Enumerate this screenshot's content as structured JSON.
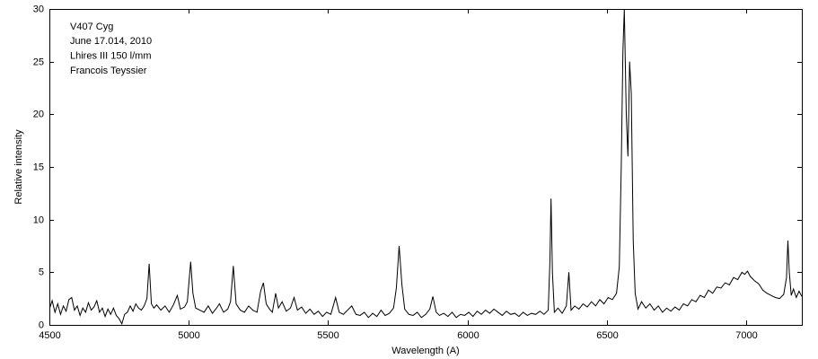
{
  "chart_data": {
    "type": "line",
    "annotations": [
      "V407 Cyg",
      "June 17.014, 2010",
      "Lhires III 150 l/mm",
      "Francois Teyssier"
    ],
    "xlabel": "Wavelength (A)",
    "ylabel": "Relative intensity",
    "xlim": [
      4500,
      7200
    ],
    "ylim": [
      0,
      30
    ],
    "xticks": [
      4500,
      5000,
      5500,
      6000,
      6500,
      7000
    ],
    "yticks": [
      0,
      5,
      10,
      15,
      20,
      25,
      30
    ],
    "grid": false,
    "color": "#000000",
    "x": [
      4500,
      4510,
      4520,
      4530,
      4540,
      4550,
      4560,
      4570,
      4580,
      4590,
      4600,
      4610,
      4620,
      4630,
      4640,
      4650,
      4660,
      4670,
      4680,
      4690,
      4700,
      4710,
      4720,
      4730,
      4740,
      4750,
      4760,
      4770,
      4780,
      4790,
      4800,
      4810,
      4820,
      4830,
      4840,
      4850,
      4858,
      4866,
      4875,
      4885,
      4900,
      4915,
      4930,
      4945,
      4959,
      4970,
      4985,
      4995,
      5007,
      5015,
      5025,
      5040,
      5055,
      5070,
      5085,
      5100,
      5110,
      5125,
      5140,
      5150,
      5160,
      5170,
      5185,
      5200,
      5215,
      5230,
      5245,
      5258,
      5268,
      5278,
      5290,
      5300,
      5312,
      5322,
      5335,
      5350,
      5365,
      5378,
      5390,
      5405,
      5420,
      5435,
      5450,
      5465,
      5480,
      5495,
      5510,
      5527,
      5540,
      5555,
      5570,
      5585,
      5600,
      5615,
      5630,
      5645,
      5660,
      5675,
      5690,
      5705,
      5720,
      5735,
      5745,
      5755,
      5765,
      5775,
      5790,
      5805,
      5820,
      5835,
      5850,
      5865,
      5876,
      5888,
      5900,
      5915,
      5930,
      5945,
      5960,
      5975,
      5990,
      6005,
      6020,
      6035,
      6050,
      6065,
      6080,
      6095,
      6110,
      6125,
      6140,
      6155,
      6170,
      6185,
      6200,
      6215,
      6230,
      6245,
      6260,
      6275,
      6290,
      6296,
      6300,
      6305,
      6312,
      6325,
      6340,
      6355,
      6364,
      6372,
      6385,
      6400,
      6415,
      6430,
      6445,
      6460,
      6475,
      6490,
      6505,
      6520,
      6535,
      6545,
      6552,
      6558,
      6563,
      6570,
      6576,
      6582,
      6588,
      6595,
      6602,
      6612,
      6625,
      6640,
      6655,
      6670,
      6685,
      6700,
      6715,
      6730,
      6745,
      6760,
      6775,
      6790,
      6805,
      6820,
      6835,
      6850,
      6865,
      6880,
      6895,
      6910,
      6925,
      6940,
      6955,
      6970,
      6985,
      6995,
      7005,
      7015,
      7030,
      7045,
      7060,
      7075,
      7090,
      7105,
      7120,
      7135,
      7145,
      7150,
      7155,
      7162,
      7170,
      7180,
      7190,
      7200
    ],
    "values": [
      1.5,
      2.3,
      1.2,
      2.0,
      1.0,
      1.8,
      1.3,
      2.4,
      2.6,
      1.4,
      1.8,
      0.9,
      1.6,
      1.2,
      2.1,
      1.4,
      1.7,
      2.3,
      1.2,
      1.6,
      0.8,
      1.5,
      1.0,
      1.6,
      0.9,
      0.6,
      0.1,
      1.0,
      1.2,
      1.8,
      1.3,
      2.0,
      1.6,
      1.4,
      1.8,
      2.5,
      5.8,
      2.0,
      1.6,
      1.9,
      1.4,
      1.8,
      1.2,
      1.9,
      2.8,
      1.5,
      1.7,
      2.2,
      6.0,
      3.0,
      1.6,
      1.4,
      1.2,
      1.8,
      1.1,
      1.6,
      2.0,
      1.2,
      1.5,
      2.2,
      5.6,
      2.0,
      1.4,
      1.2,
      1.8,
      1.4,
      1.2,
      3.2,
      4.0,
      2.0,
      1.5,
      1.2,
      3.0,
      1.6,
      2.2,
      1.3,
      1.6,
      2.6,
      1.4,
      1.7,
      1.1,
      1.5,
      1.0,
      1.3,
      0.8,
      1.2,
      1.0,
      2.6,
      1.2,
      1.0,
      1.4,
      1.8,
      1.0,
      0.9,
      1.2,
      0.7,
      1.1,
      0.8,
      1.4,
      0.9,
      1.1,
      1.6,
      3.5,
      7.5,
      3.8,
      1.5,
      1.0,
      0.9,
      1.2,
      0.7,
      1.0,
      1.5,
      2.7,
      1.2,
      0.9,
      1.1,
      0.8,
      1.2,
      0.7,
      1.0,
      0.9,
      1.2,
      0.8,
      1.3,
      1.0,
      1.4,
      1.1,
      1.5,
      1.2,
      0.9,
      1.3,
      1.0,
      1.1,
      0.8,
      1.2,
      0.9,
      1.1,
      1.0,
      1.3,
      1.0,
      1.4,
      6.0,
      12.0,
      5.0,
      1.2,
      1.6,
      1.1,
      1.8,
      5.0,
      1.4,
      1.8,
      1.5,
      2.0,
      1.7,
      2.2,
      1.8,
      2.4,
      2.0,
      2.6,
      2.4,
      3.0,
      5.5,
      15.0,
      26.0,
      30.0,
      20.0,
      16.0,
      25.0,
      22.0,
      8.0,
      3.0,
      1.5,
      2.2,
      1.6,
      2.0,
      1.4,
      1.8,
      1.2,
      1.6,
      1.3,
      1.7,
      1.4,
      2.0,
      1.8,
      2.4,
      2.2,
      2.8,
      2.6,
      3.3,
      3.0,
      3.6,
      3.5,
      4.0,
      3.8,
      4.5,
      4.3,
      5.0,
      4.8,
      5.1,
      4.6,
      4.2,
      3.9,
      3.3,
      3.0,
      2.8,
      2.6,
      2.5,
      2.9,
      4.5,
      8.0,
      5.0,
      2.8,
      3.4,
      2.6,
      3.2,
      2.7
    ]
  }
}
